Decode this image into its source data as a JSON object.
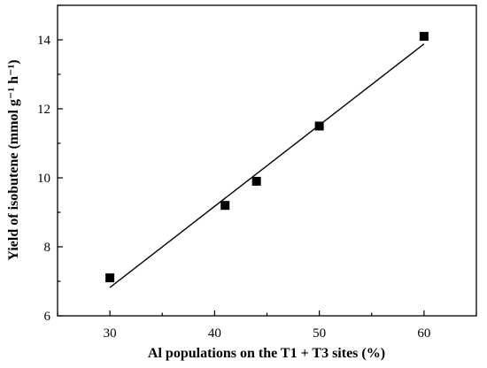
{
  "chart_data": {
    "type": "scatter",
    "title": "",
    "xlabel": "Al populations on the T1 + T3 sites (%)",
    "ylabel": "Yield of isobutene (mmol g⁻¹ h⁻¹)",
    "xlim": [
      25,
      65
    ],
    "ylim": [
      6,
      15
    ],
    "x_ticks": [
      30,
      40,
      50,
      60
    ],
    "y_ticks": [
      6,
      8,
      10,
      12,
      14
    ],
    "grid": false,
    "legend": "none",
    "series": [
      {
        "marker": "square",
        "color": "#000000",
        "points": [
          {
            "x": 30,
            "y": 7.1
          },
          {
            "x": 41,
            "y": 9.2
          },
          {
            "x": 44,
            "y": 9.9
          },
          {
            "x": 50,
            "y": 11.5
          },
          {
            "x": 60,
            "y": 14.1
          }
        ]
      }
    ],
    "fit_line": {
      "color": "#000000",
      "from": {
        "x": 30,
        "y": 6.82
      },
      "to": {
        "x": 60,
        "y": 13.88
      }
    }
  }
}
